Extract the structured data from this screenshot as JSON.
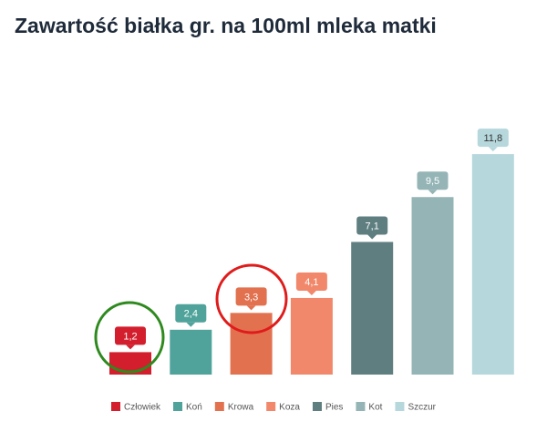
{
  "chart_data": {
    "type": "bar",
    "title": "Zawartość białka gr. na 100ml mleka matki",
    "categories": [
      "Człowiek",
      "Koń",
      "Krowa",
      "Koza",
      "Pies",
      "Kot",
      "Szczur"
    ],
    "values": [
      1.2,
      2.4,
      3.3,
      4.1,
      7.1,
      9.5,
      11.8
    ],
    "value_labels": [
      "1,2",
      "2,4",
      "3,3",
      "4,1",
      "7,1",
      "9,5",
      "11,8"
    ],
    "colors": [
      "#d31f2d",
      "#4fa39b",
      "#e2714f",
      "#f2886b",
      "#5f7e80",
      "#95b4b6",
      "#b6d7dc"
    ],
    "legend": "bottom"
  }
}
